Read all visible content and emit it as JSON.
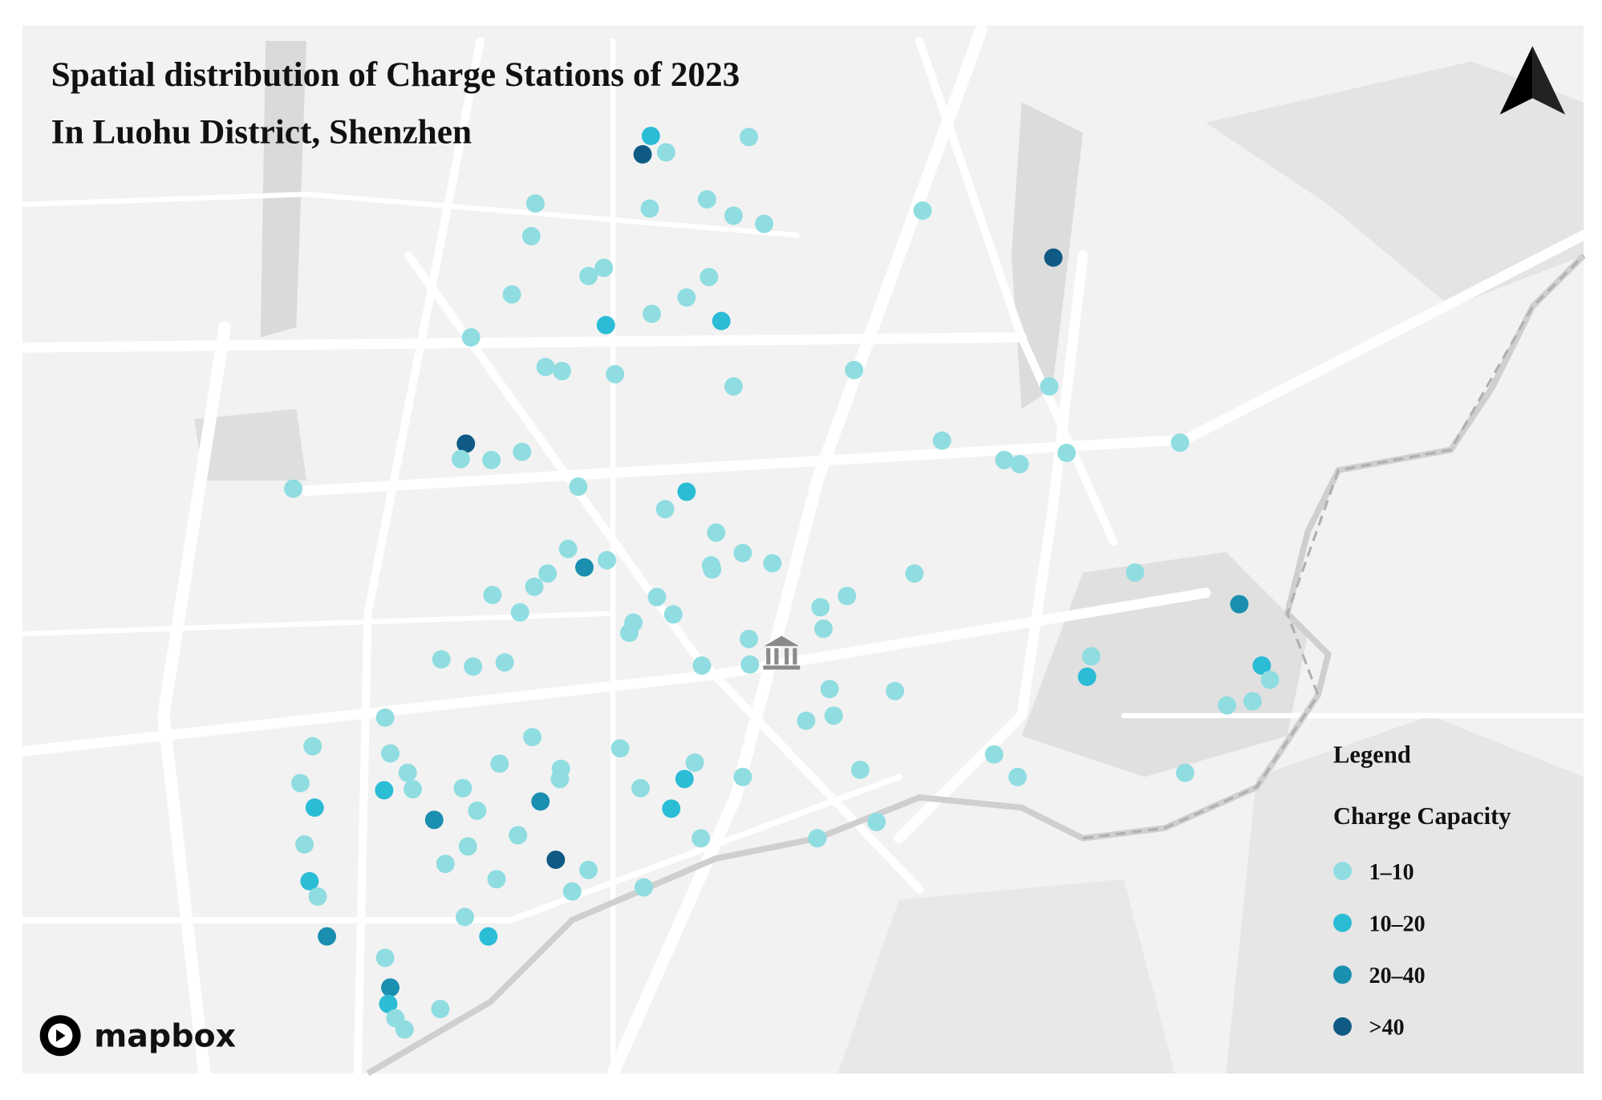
{
  "title": {
    "line1": "Spatial distribution of Charge Stations of 2023",
    "line2": "In Luohu District, Shenzhen"
  },
  "legend": {
    "title": "Legend",
    "subtitle": "Charge Capacity",
    "items": [
      {
        "label": "1–10",
        "color": "#8fdde0"
      },
      {
        "label": "10–20",
        "color": "#2bbcd6"
      },
      {
        "label": "20–40",
        "color": "#1a8fb0"
      },
      {
        "label": ">40",
        "color": "#0f5a85"
      }
    ]
  },
  "attribution": "mapbox"
}
